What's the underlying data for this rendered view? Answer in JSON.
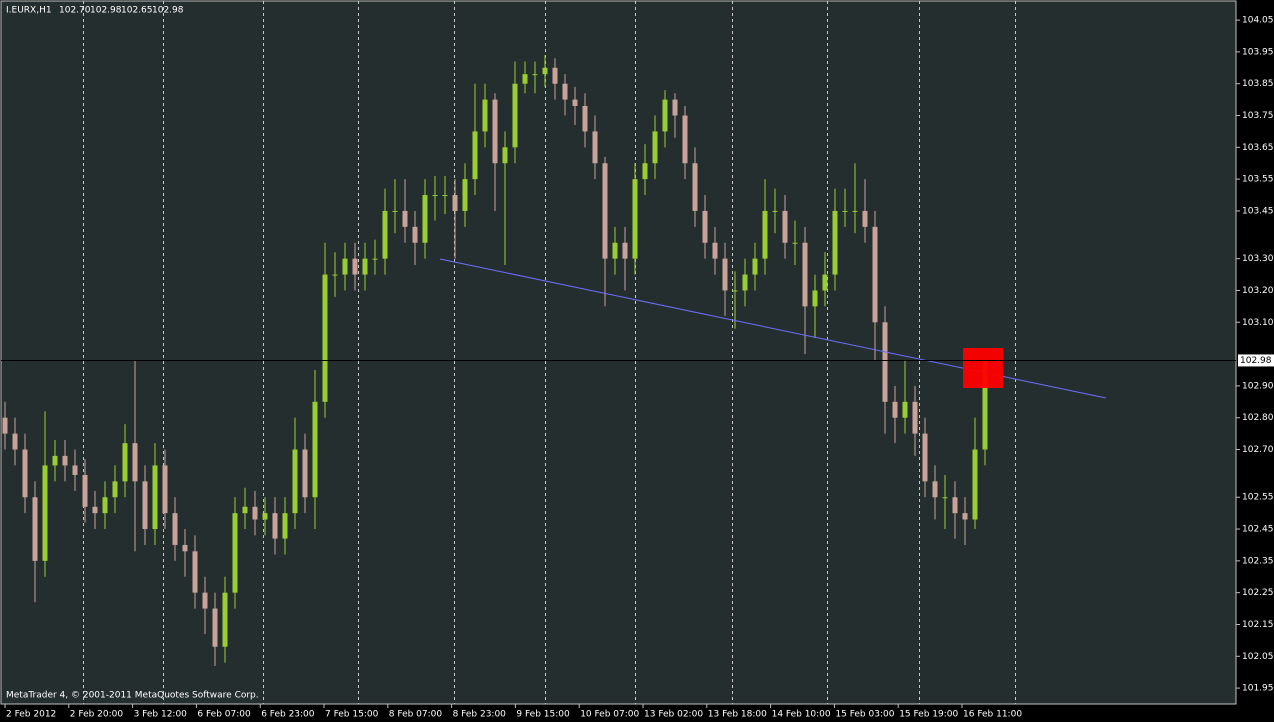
{
  "chart_data": {
    "type": "candlestick",
    "title": "I.EURX,H1",
    "ohlc_labels": [
      "102.70",
      "102.98",
      "102.65",
      "102.98"
    ],
    "footer": "MetaTrader 4, © 2001-2011 MetaQuotes Software Corp.",
    "up_color": "#9acd32",
    "down_color": "#c9a29a",
    "ylim": [
      101.9,
      104.11
    ],
    "yticks": [
      104.05,
      103.95,
      103.85,
      103.75,
      103.65,
      103.55,
      103.45,
      {
        "value": 103.3,
        "label": "103.30"
      },
      {
        "value": 103.2,
        "label": "103.20"
      },
      {
        "value": 103.1,
        "label": "103.10"
      },
      {
        "value": 102.9,
        "label": "102.90"
      },
      {
        "value": 102.8,
        "label": "102.80"
      },
      {
        "value": 102.7,
        "label": "102.70"
      },
      102.55,
      102.45,
      102.35,
      102.25,
      102.15,
      102.05,
      101.95
    ],
    "current_price": {
      "value": 102.98,
      "label": "102.98"
    },
    "x_labels": [
      "2 Feb 2012",
      "2 Feb 20:00",
      "3 Feb 12:00",
      "6 Feb 07:00",
      "6 Feb 23:00",
      "7 Feb 15:00",
      "8 Feb 07:00",
      "8 Feb 23:00",
      "9 Feb 15:00",
      "10 Feb 07:00",
      "13 Feb 02:00",
      "13 Feb 18:00",
      "14 Feb 10:00",
      "15 Feb 03:00",
      "15 Feb 19:00",
      "16 Feb 11:00"
    ],
    "open": [
      102.8,
      102.75,
      102.7,
      102.55,
      102.35,
      102.65,
      102.68,
      102.65,
      102.62,
      102.52,
      102.5,
      102.55,
      102.6,
      102.72,
      102.6,
      102.45,
      102.65,
      102.5,
      102.4,
      102.38,
      102.25,
      102.2,
      102.08,
      102.25,
      102.5,
      102.52,
      102.48,
      102.5,
      102.42,
      102.5,
      102.7,
      102.55,
      102.85,
      103.25,
      103.25,
      103.3,
      103.25,
      103.3,
      103.3,
      103.45,
      103.45,
      103.4,
      103.35,
      103.5,
      103.5,
      103.5,
      103.45,
      103.55,
      103.7,
      103.8,
      103.6,
      103.65,
      103.85,
      103.88,
      103.88,
      103.9,
      103.85,
      103.8,
      103.78,
      103.7,
      103.6,
      103.3,
      103.35,
      103.3,
      103.55,
      103.6,
      103.7,
      103.8,
      103.75,
      103.6,
      103.45,
      103.35,
      103.3,
      103.2,
      103.2,
      103.25,
      103.3,
      103.45,
      103.45,
      103.35,
      103.35,
      103.15,
      103.2,
      103.25,
      103.45,
      103.45,
      103.45,
      103.4,
      103.1,
      102.85,
      102.8,
      102.85,
      102.75,
      102.6,
      102.55,
      102.55,
      102.5,
      102.48,
      102.7
    ],
    "high": [
      102.85,
      102.8,
      102.75,
      102.6,
      102.82,
      102.73,
      102.73,
      102.7,
      102.67,
      102.57,
      102.6,
      102.65,
      102.78,
      102.98,
      102.65,
      102.72,
      102.7,
      102.55,
      102.45,
      102.43,
      102.3,
      102.25,
      102.3,
      102.55,
      102.58,
      102.57,
      102.55,
      102.55,
      102.55,
      102.8,
      102.75,
      102.95,
      103.35,
      103.32,
      103.35,
      103.35,
      103.35,
      103.36,
      103.52,
      103.55,
      103.55,
      103.45,
      103.55,
      103.56,
      103.56,
      103.55,
      103.6,
      103.85,
      103.85,
      103.82,
      103.7,
      103.92,
      103.92,
      103.92,
      103.94,
      103.93,
      103.88,
      103.84,
      103.82,
      103.75,
      103.62,
      103.4,
      103.4,
      103.6,
      103.66,
      103.75,
      103.83,
      103.82,
      103.78,
      103.65,
      103.5,
      103.4,
      103.35,
      103.26,
      103.3,
      103.35,
      103.55,
      103.52,
      103.5,
      103.42,
      103.4,
      103.25,
      103.32,
      103.52,
      103.52,
      103.6,
      103.55,
      103.45,
      103.15,
      102.9,
      102.98,
      102.9,
      102.8,
      102.65,
      102.62,
      102.6,
      102.55,
      102.8,
      102.98
    ],
    "low": [
      102.7,
      102.65,
      102.5,
      102.22,
      102.3,
      102.6,
      102.6,
      102.57,
      102.47,
      102.45,
      102.45,
      102.5,
      102.55,
      102.38,
      102.4,
      102.4,
      102.45,
      102.35,
      102.3,
      102.2,
      102.12,
      102.02,
      102.03,
      102.2,
      102.45,
      102.43,
      102.43,
      102.37,
      102.37,
      102.45,
      102.5,
      102.45,
      102.8,
      103.18,
      103.2,
      103.2,
      103.2,
      103.25,
      103.25,
      103.38,
      103.35,
      103.28,
      103.3,
      103.42,
      103.44,
      103.3,
      103.4,
      103.5,
      103.65,
      103.45,
      103.28,
      103.6,
      103.82,
      103.82,
      103.84,
      103.8,
      103.75,
      103.72,
      103.65,
      103.55,
      103.15,
      103.25,
      103.2,
      103.25,
      103.5,
      103.55,
      103.65,
      103.68,
      103.55,
      103.4,
      103.3,
      103.25,
      103.12,
      103.08,
      103.15,
      103.2,
      103.25,
      103.38,
      103.3,
      103.28,
      103.0,
      103.05,
      103.15,
      103.2,
      103.4,
      103.38,
      103.35,
      102.98,
      102.75,
      102.72,
      102.75,
      102.68,
      102.55,
      102.48,
      102.45,
      102.42,
      102.4,
      102.45,
      102.65
    ],
    "close": [
      102.75,
      102.7,
      102.55,
      102.35,
      102.65,
      102.68,
      102.65,
      102.62,
      102.52,
      102.5,
      102.55,
      102.6,
      102.72,
      102.6,
      102.45,
      102.65,
      102.5,
      102.4,
      102.38,
      102.25,
      102.2,
      102.08,
      102.25,
      102.5,
      102.52,
      102.48,
      102.5,
      102.42,
      102.5,
      102.7,
      102.55,
      102.85,
      103.25,
      103.25,
      103.3,
      103.25,
      103.3,
      103.3,
      103.45,
      103.45,
      103.4,
      103.35,
      103.5,
      103.5,
      103.5,
      103.45,
      103.55,
      103.7,
      103.8,
      103.6,
      103.65,
      103.85,
      103.88,
      103.88,
      103.9,
      103.85,
      103.8,
      103.78,
      103.7,
      103.6,
      103.3,
      103.35,
      103.3,
      103.55,
      103.6,
      103.7,
      103.8,
      103.75,
      103.6,
      103.45,
      103.35,
      103.3,
      103.2,
      103.2,
      103.25,
      103.3,
      103.45,
      103.45,
      103.35,
      103.35,
      103.15,
      103.2,
      103.25,
      103.45,
      103.45,
      103.45,
      103.4,
      103.1,
      102.85,
      102.8,
      102.85,
      102.75,
      102.6,
      102.55,
      102.55,
      102.5,
      102.48,
      102.7,
      102.98
    ]
  }
}
